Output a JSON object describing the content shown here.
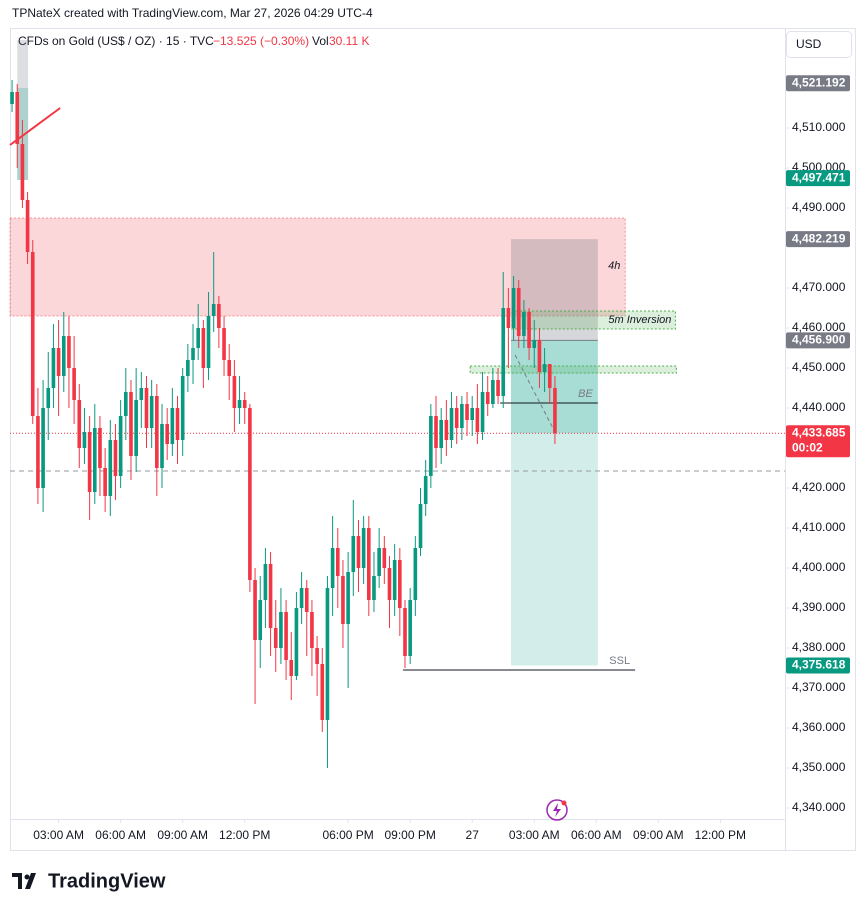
{
  "header": "TPNateX created with TradingView.com, Mar 27, 2026 04:29 UTC-4",
  "footer_logo": "TradingView",
  "chart_data": {
    "type": "candlestick",
    "symbol": "CFDs on Gold (US$ / OZ) · 15 · TVC",
    "change": "−13.525 (−0.30%)",
    "volume_label": "Vol",
    "volume": "30.11 K",
    "currency": "USD",
    "up_color": "#089981",
    "down_color": "#f23645",
    "xlim": [
      -0.4,
      149.5
    ],
    "ylim": [
      4329.5,
      4534.5
    ],
    "xticks": [
      {
        "value": 9,
        "label": "03:00 AM"
      },
      {
        "value": 21,
        "label": "06:00 AM"
      },
      {
        "value": 33,
        "label": "09:00 AM"
      },
      {
        "value": 45,
        "label": "12:00 PM"
      },
      {
        "value": 65,
        "label": "06:00 PM"
      },
      {
        "value": 77,
        "label": "09:00 PM"
      },
      {
        "value": 89,
        "label": "27"
      },
      {
        "value": 101,
        "label": "03:00 AM"
      },
      {
        "value": 113,
        "label": "06:00 AM"
      },
      {
        "value": 125,
        "label": "09:00 AM"
      },
      {
        "value": 137,
        "label": "12:00 PM"
      }
    ],
    "yticks": [
      {
        "value": 4340,
        "label": "4,340.000"
      },
      {
        "value": 4350,
        "label": "4,350.000"
      },
      {
        "value": 4360,
        "label": "4,360.000"
      },
      {
        "value": 4370,
        "label": "4,370.000"
      },
      {
        "value": 4380,
        "label": "4,380.000"
      },
      {
        "value": 4390,
        "label": "4,390.000"
      },
      {
        "value": 4400,
        "label": "4,400.000"
      },
      {
        "value": 4410,
        "label": "4,410.000"
      },
      {
        "value": 4420,
        "label": "4,420.000"
      },
      {
        "value": 4440,
        "label": "4,440.000"
      },
      {
        "value": 4450,
        "label": "4,450.000"
      },
      {
        "value": 4460,
        "label": "4,460.000"
      },
      {
        "value": 4470,
        "label": "4,470.000"
      },
      {
        "value": 4490,
        "label": "4,490.000"
      },
      {
        "value": 4500,
        "label": "4,500.000"
      },
      {
        "value": 4510,
        "label": "4,510.000"
      }
    ],
    "candles": [
      [
        4516,
        4522,
        4514,
        4519
      ],
      [
        4519,
        4521,
        4500,
        4506
      ],
      [
        4506,
        4512,
        4490,
        4492
      ],
      [
        4492,
        4494,
        4476,
        4479
      ],
      [
        4479,
        4482,
        4436,
        4438
      ],
      [
        4438,
        4445,
        4416,
        4420
      ],
      [
        4420,
        4447,
        4414,
        4440
      ],
      [
        4440,
        4454,
        4432,
        4445
      ],
      [
        4445,
        4461,
        4440,
        4455
      ],
      [
        4455,
        4462,
        4438,
        4448
      ],
      [
        4448,
        4464,
        4444,
        4458
      ],
      [
        4458,
        4463,
        4440,
        4450
      ],
      [
        4450,
        4458,
        4436,
        4442
      ],
      [
        4442,
        4446,
        4425,
        4430
      ],
      [
        4430,
        4440,
        4426,
        4434
      ],
      [
        4434,
        4438,
        4412,
        4419
      ],
      [
        4419,
        4441,
        4416,
        4435
      ],
      [
        4435,
        4438,
        4418,
        4425
      ],
      [
        4425,
        4430,
        4414,
        4418
      ],
      [
        4418,
        4437,
        4413,
        4432
      ],
      [
        4432,
        4436,
        4417,
        4423
      ],
      [
        4423,
        4442,
        4420,
        4438
      ],
      [
        4438,
        4450,
        4432,
        4444
      ],
      [
        4444,
        4447,
        4422,
        4428
      ],
      [
        4428,
        4450,
        4424,
        4442
      ],
      [
        4442,
        4449,
        4435,
        4445
      ],
      [
        4445,
        4448,
        4430,
        4435
      ],
      [
        4435,
        4447,
        4430,
        4443
      ],
      [
        4443,
        4446,
        4418,
        4425
      ],
      [
        4425,
        4441,
        4420,
        4436
      ],
      [
        4436,
        4440,
        4427,
        4431
      ],
      [
        4431,
        4445,
        4428,
        4440
      ],
      [
        4440,
        4443,
        4426,
        4432
      ],
      [
        4432,
        4450,
        4428,
        4448
      ],
      [
        4448,
        4456,
        4444,
        4452
      ],
      [
        4452,
        4461,
        4446,
        4455
      ],
      [
        4455,
        4466,
        4452,
        4460
      ],
      [
        4460,
        4462,
        4445,
        4450
      ],
      [
        4450,
        4469,
        4447,
        4463
      ],
      [
        4463,
        4479,
        4459,
        4466
      ],
      [
        4466,
        4468,
        4455,
        4460
      ],
      [
        4460,
        4463,
        4448,
        4452
      ],
      [
        4452,
        4456,
        4442,
        4448
      ],
      [
        4448,
        4452,
        4434,
        4440
      ],
      [
        4440,
        4448,
        4436,
        4442
      ],
      [
        4442,
        4444,
        4436,
        4440
      ],
      [
        4440,
        4441,
        4394,
        4397
      ],
      [
        4397,
        4400,
        4366,
        4382
      ],
      [
        4382,
        4398,
        4375,
        4392
      ],
      [
        4392,
        4405,
        4385,
        4401
      ],
      [
        4401,
        4404,
        4378,
        4385
      ],
      [
        4385,
        4392,
        4374,
        4380
      ],
      [
        4380,
        4395,
        4376,
        4389
      ],
      [
        4389,
        4392,
        4372,
        4377
      ],
      [
        4377,
        4384,
        4367,
        4373
      ],
      [
        4373,
        4394,
        4372,
        4390
      ],
      [
        4390,
        4399,
        4386,
        4395
      ],
      [
        4395,
        4397,
        4378,
        4389
      ],
      [
        4389,
        4392,
        4373,
        4380
      ],
      [
        4380,
        4383,
        4368,
        4376
      ],
      [
        4376,
        4380,
        4359,
        4362
      ],
      [
        4362,
        4398,
        4350,
        4395
      ],
      [
        4395,
        4413,
        4388,
        4405
      ],
      [
        4405,
        4410,
        4390,
        4398
      ],
      [
        4398,
        4402,
        4380,
        4386
      ],
      [
        4386,
        4404,
        4370,
        4399
      ],
      [
        4399,
        4417,
        4393,
        4408
      ],
      [
        4408,
        4412,
        4394,
        4400
      ],
      [
        4400,
        4413,
        4396,
        4410
      ],
      [
        4410,
        4413,
        4388,
        4392
      ],
      [
        4392,
        4404,
        4389,
        4398
      ],
      [
        4398,
        4410,
        4395,
        4405
      ],
      [
        4405,
        4408,
        4396,
        4400
      ],
      [
        4400,
        4403,
        4385,
        4392
      ],
      [
        4392,
        4406,
        4388,
        4402
      ],
      [
        4402,
        4405,
        4383,
        4390
      ],
      [
        4390,
        4392,
        4375,
        4378
      ],
      [
        4378,
        4395,
        4376,
        4392
      ],
      [
        4392,
        4408,
        4388,
        4405
      ],
      [
        4405,
        4420,
        4403,
        4416
      ],
      [
        4416,
        4427,
        4413,
        4423
      ],
      [
        4423,
        4441,
        4420,
        4438
      ],
      [
        4438,
        4443,
        4425,
        4430
      ],
      [
        4430,
        4440,
        4426,
        4437
      ],
      [
        4437,
        4442,
        4428,
        4432
      ],
      [
        4432,
        4444,
        4430,
        4440
      ],
      [
        4440,
        4443,
        4431,
        4435
      ],
      [
        4435,
        4443,
        4432,
        4441
      ],
      [
        4441,
        4444,
        4433,
        4437
      ],
      [
        4437,
        4443,
        4433,
        4440
      ],
      [
        4440,
        4446,
        4431,
        4434
      ],
      [
        4434,
        4449,
        4432,
        4444
      ],
      [
        4444,
        4448,
        4438,
        4441
      ],
      [
        4441,
        4450,
        4440,
        4447
      ],
      [
        4447,
        4450,
        4441,
        4443
      ],
      [
        4443,
        4474,
        4440,
        4465
      ],
      [
        4465,
        4470,
        4450,
        4460
      ],
      [
        4460,
        4473,
        4457,
        4470
      ],
      [
        4470,
        4472,
        4455,
        4458
      ],
      [
        4458,
        4467,
        4455,
        4464
      ],
      [
        4464,
        4465,
        4452,
        4455
      ],
      [
        4455,
        4462,
        4450,
        4457
      ],
      [
        4457,
        4460,
        4445,
        4449
      ],
      [
        4449,
        4455,
        4444,
        4451
      ],
      [
        4451,
        4450,
        4441,
        4445
      ],
      [
        4445,
        4448,
        4431,
        4433.685
      ]
    ],
    "supply_zone": {
      "x": [
        -0.4,
        118.6
      ],
      "y": [
        4487.5,
        4463
      ],
      "color": "#f23645"
    },
    "range_box": {
      "x": [
        1,
        3.1
      ],
      "y": [
        4532,
        4497
      ],
      "inner_y": [
        4520,
        4497
      ],
      "color": "#787b86",
      "inner_color": "#22ab94"
    },
    "trend_line": {
      "x": [
        -0.4,
        9.3
      ],
      "y": [
        4505.75,
        4515
      ],
      "color": "#f23645"
    },
    "position": {
      "x": [
        96.5,
        113.3
      ],
      "stop": 4482.219,
      "entry": 4456.9,
      "current": 4433.685,
      "target": 4375.618,
      "loss_color": "#787b86",
      "profit_color": "#22ab94"
    },
    "tf_label": {
      "label": "4h",
      "x": 115.3,
      "y": 4475.5
    },
    "inversion_box": {
      "label": "5m Inversion",
      "x": [
        96.7,
        128.3
      ],
      "y": [
        4464.25,
        4459.75
      ],
      "color": "#4caf50"
    },
    "fvg_box": {
      "x": [
        88.6,
        128.5
      ],
      "y": [
        4450.5,
        4448.75
      ],
      "color": "#4caf50"
    },
    "be_line": {
      "label": "BE",
      "x": [
        94.4,
        113.3
      ],
      "y": 4441.25
    },
    "ssl_line": {
      "label": "SSL",
      "x": [
        75.6,
        120.5
      ],
      "y": 4374.5
    },
    "ref_line": 4424.25,
    "path_arrow": {
      "x": [
        97.3,
        105.4
      ],
      "y": [
        4453.25,
        4433
      ]
    },
    "price_labels": [
      {
        "value": 4521.192,
        "label": "4,521.192",
        "color": "#787b86"
      },
      {
        "value": 4497.471,
        "label": "4,497.471",
        "color": "#089981"
      },
      {
        "value": 4482.219,
        "label": "4,482.219",
        "color": "#787b86"
      },
      {
        "value": 4456.9,
        "label": "4,456.900",
        "color": "#787b86"
      },
      {
        "value": 4433.685,
        "label": "4,433.685",
        "color": "#f23645",
        "countdown": "00:02"
      },
      {
        "value": 4375.618,
        "label": "4,375.618",
        "color": "#089981"
      }
    ]
  }
}
